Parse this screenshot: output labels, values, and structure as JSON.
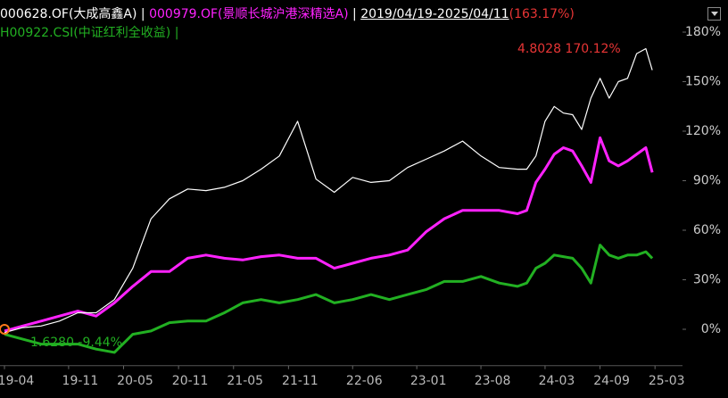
{
  "chart_data": {
    "type": "line",
    "date_range": "2019/04/19-2025/04/11",
    "range_return": "(163.17%)",
    "x": [
      0,
      2,
      4,
      6,
      8,
      10,
      12,
      14,
      16,
      18,
      20,
      22,
      24,
      26,
      28,
      30,
      32,
      34,
      36,
      38,
      40,
      42,
      44,
      46,
      48,
      50,
      52,
      54,
      56,
      57,
      58,
      59,
      60,
      61,
      62,
      63,
      64,
      65,
      66,
      67,
      68,
      69,
      70,
      70.7
    ],
    "xlim": [
      0,
      74
    ],
    "xticks": [
      {
        "value": 0,
        "label": "19-04"
      },
      {
        "value": 7,
        "label": "19-11"
      },
      {
        "value": 13,
        "label": "20-05"
      },
      {
        "value": 19,
        "label": "20-11"
      },
      {
        "value": 25,
        "label": "21-05"
      },
      {
        "value": 31,
        "label": "21-11"
      },
      {
        "value": 38,
        "label": "22-06"
      },
      {
        "value": 45,
        "label": "23-01"
      },
      {
        "value": 52,
        "label": "23-08"
      },
      {
        "value": 59,
        "label": "24-03"
      },
      {
        "value": 65,
        "label": "24-09"
      },
      {
        "value": 71,
        "label": "25-03"
      }
    ],
    "ylim": [
      -22,
      184
    ],
    "yticks": [
      {
        "value": 0,
        "label": "0%"
      },
      {
        "value": 30,
        "label": "30%"
      },
      {
        "value": 60,
        "label": "60%"
      },
      {
        "value": 90,
        "label": "90%"
      },
      {
        "value": 120,
        "label": "120%"
      },
      {
        "value": 150,
        "label": "150%"
      },
      {
        "value": 180,
        "label": "180%"
      }
    ],
    "series": [
      {
        "name": "000628.OF(大成高鑫A)",
        "color": "#ffffff",
        "values": [
          -2,
          1,
          2,
          5,
          10,
          10,
          18,
          37,
          67,
          79,
          85,
          84,
          86,
          90,
          97,
          105,
          126,
          91,
          83,
          92,
          89,
          90,
          98,
          103,
          108,
          114,
          105,
          98,
          97,
          97,
          105,
          126,
          135,
          131,
          130,
          121,
          140,
          152,
          140,
          150,
          152,
          167,
          170,
          157
        ]
      },
      {
        "name": "000979.OF(景顺长城沪港深精选A)",
        "color": "#ff22ff",
        "values": [
          -1,
          2,
          5,
          8,
          11,
          8,
          16,
          26,
          35,
          35,
          43,
          45,
          43,
          42,
          44,
          45,
          43,
          43,
          37,
          40,
          43,
          45,
          48,
          59,
          67,
          72,
          72,
          72,
          70,
          72,
          89,
          97,
          106,
          110,
          108,
          99,
          89,
          116,
          102,
          99,
          102,
          106,
          110,
          95
        ]
      },
      {
        "name": "H00922.CSI(中证红利全收益)",
        "color": "#22b022",
        "values": [
          -3,
          -6,
          -9,
          -9,
          -9,
          -12,
          -14,
          -3,
          -1,
          4,
          5,
          5,
          10,
          16,
          18,
          16,
          18,
          21,
          16,
          18,
          21,
          18,
          21,
          24,
          29,
          29,
          32,
          28,
          26,
          28,
          37,
          40,
          45,
          44,
          43,
          37,
          28,
          51,
          45,
          43,
          45,
          45,
          47,
          43
        ]
      }
    ],
    "annotations": [
      {
        "text": "4.8028 170.12%"
      },
      {
        "text": "1.6280 -9.44%"
      }
    ]
  }
}
